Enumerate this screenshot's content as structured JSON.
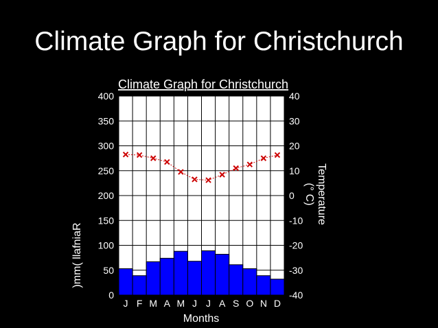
{
  "slide": {
    "title": "Climate Graph for Christchurch"
  },
  "chart_data": {
    "type": "bar",
    "title": "Climate Graph for Christchurch",
    "categories": [
      "J",
      "F",
      "M",
      "A",
      "M",
      "J",
      "J",
      "A",
      "S",
      "O",
      "N",
      "D"
    ],
    "xlabel": "Months",
    "ylabel": ")mm( llafniaR",
    "y2label": "Temperature",
    "y2label_unit": "(° C)",
    "ylim": [
      0,
      400
    ],
    "y2lim": [
      -40,
      40
    ],
    "y_ticks": [
      "0",
      "50",
      "100",
      "150",
      "200",
      "250",
      "300",
      "350",
      "400"
    ],
    "y2_ticks": [
      "-40",
      "-30",
      "-20",
      "-10",
      "0",
      "10",
      "20",
      "30",
      "40"
    ],
    "grid": true,
    "series": [
      {
        "type": "bar",
        "axis": "left",
        "values": [
          53,
          39,
          67,
          74,
          88,
          68,
          89,
          82,
          61,
          53,
          39,
          32
        ]
      },
      {
        "type": "line",
        "axis": "right",
        "values": [
          16.5,
          16.3,
          15,
          13.5,
          9.5,
          6.5,
          6.2,
          8.4,
          11,
          12.5,
          15,
          16.3
        ]
      }
    ],
    "colors": {
      "bar": "#0000ff",
      "bar_edge": "#000000",
      "line": "#cc0000",
      "grid": "#000000",
      "plot_bg": "#ffffff"
    }
  }
}
